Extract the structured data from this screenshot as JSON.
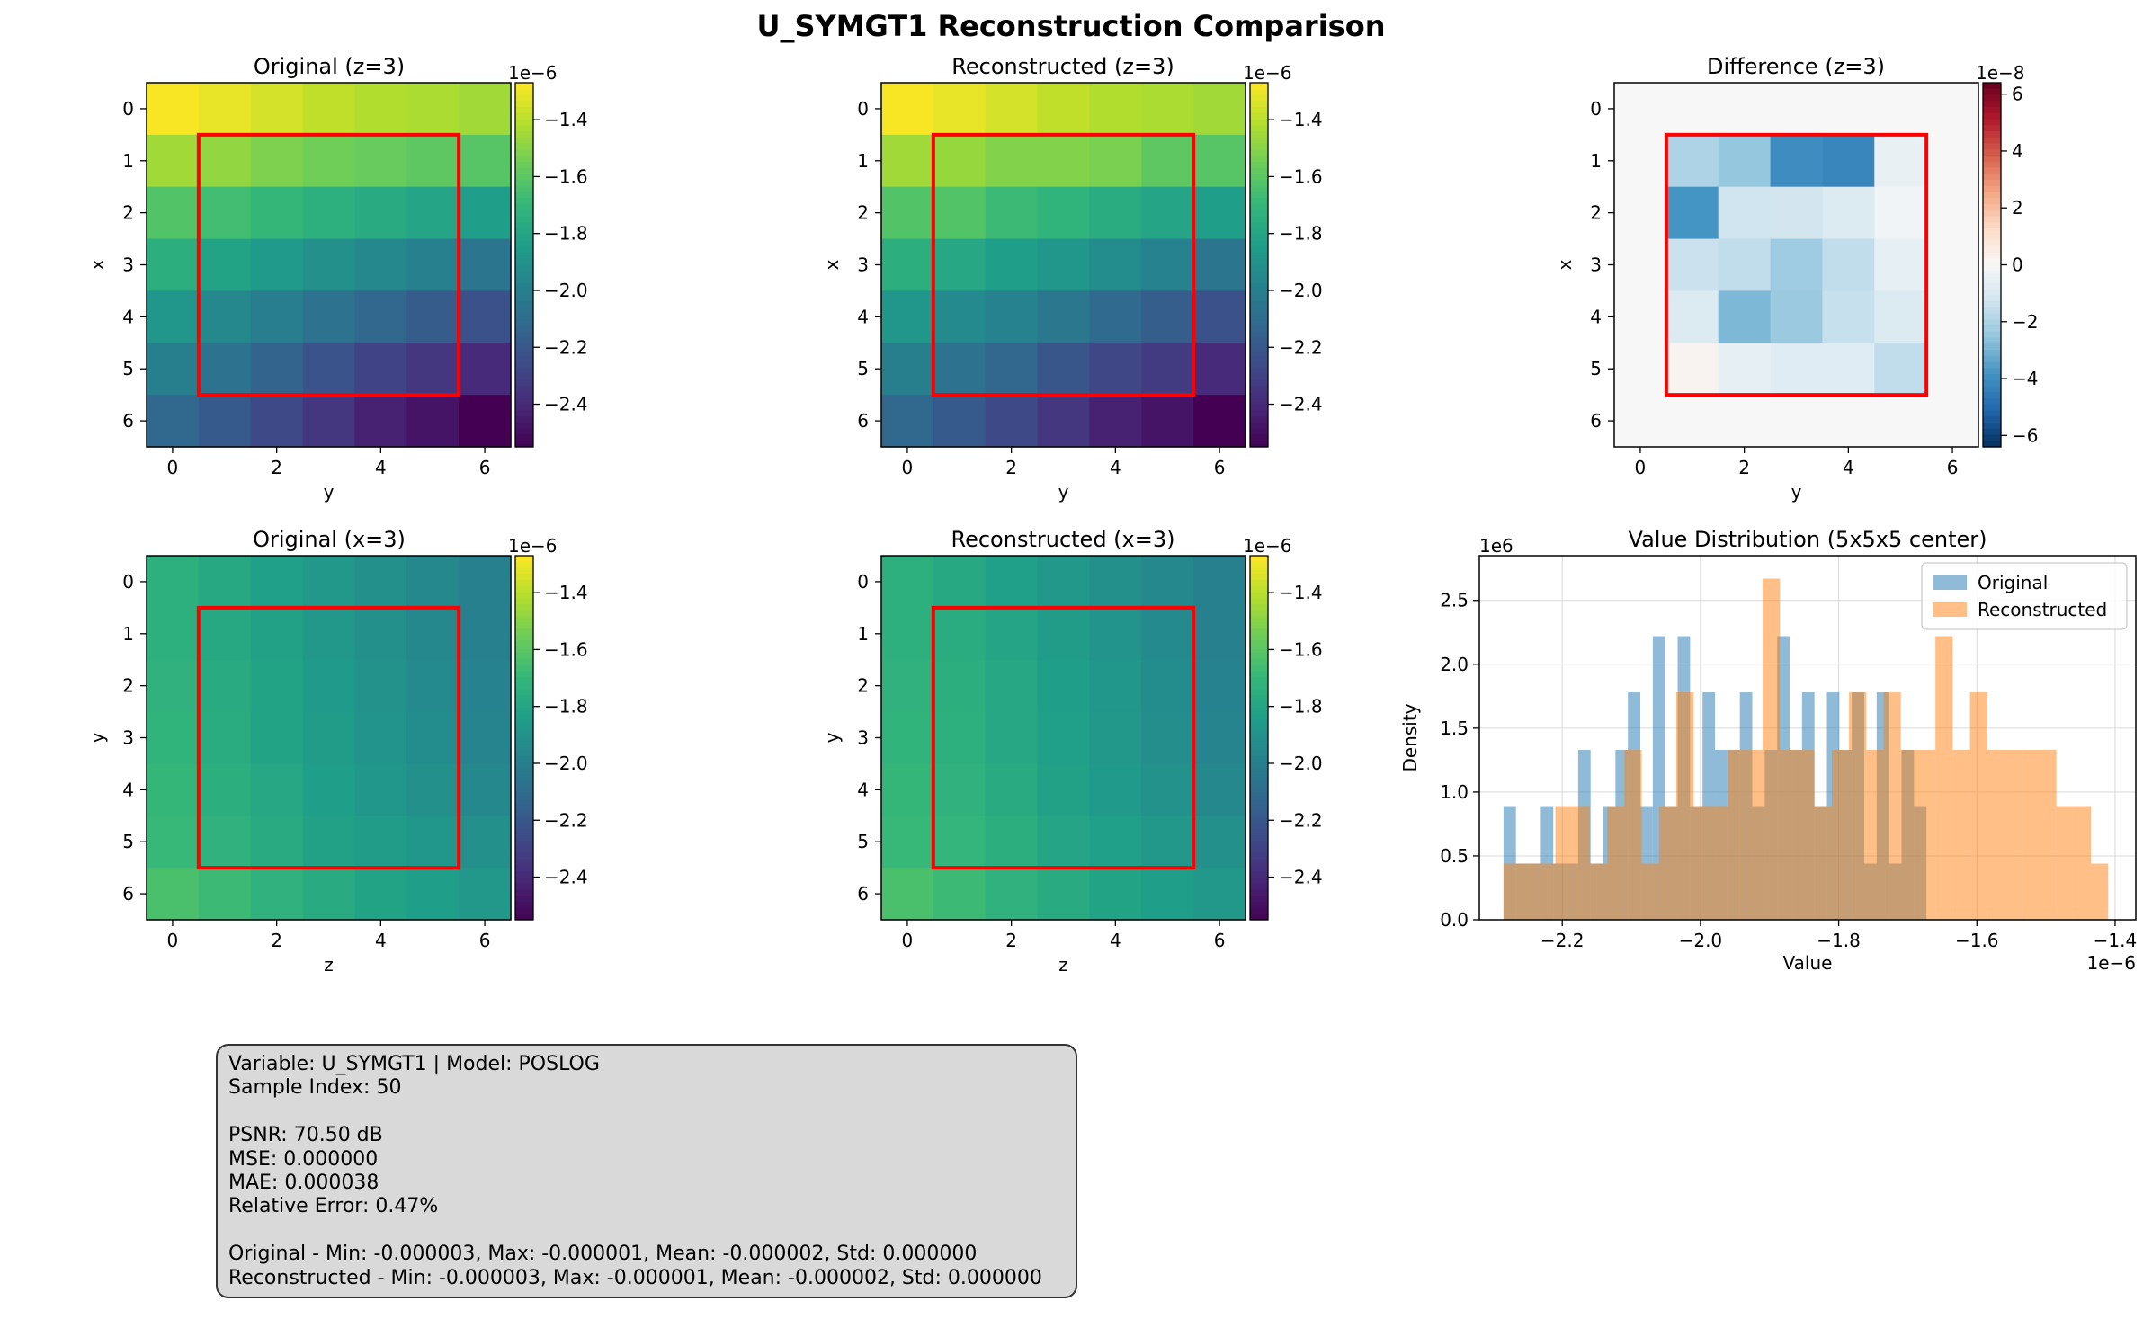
{
  "figure_title": "U_SYMGT1 Reconstruction Comparison",
  "colors": {
    "mask": "#ff0000",
    "original": "#1f77b4",
    "reconstructed": "#ff7f0e",
    "grid": "#d9d9d9",
    "stats_bg": "#d9d9d9"
  },
  "chart_data": [
    {
      "type": "heatmap",
      "title": "Original (z=3)",
      "xlabel": "y",
      "ylabel": "x",
      "cmap": "viridis",
      "x_ticks": [
        "0",
        "2",
        "4",
        "6"
      ],
      "y_ticks": [
        "0",
        "1",
        "2",
        "3",
        "4",
        "5",
        "6"
      ],
      "colorbar": {
        "vmin": -2.55,
        "vmax": -1.27,
        "ticks": [
          -1.4,
          -1.6,
          -1.8,
          -2.0,
          -2.2,
          -2.4
        ],
        "tick_labels": [
          "−1.4",
          "−1.6",
          "−1.8",
          "−2.0",
          "−2.2",
          "−2.4"
        ],
        "offset": "1e−6"
      },
      "mask": {
        "rows": [
          1,
          5
        ],
        "cols": [
          1,
          5
        ]
      },
      "values": [
        [
          -1.28,
          -1.31,
          -1.35,
          -1.39,
          -1.42,
          -1.43,
          -1.45
        ],
        [
          -1.45,
          -1.48,
          -1.52,
          -1.55,
          -1.57,
          -1.59,
          -1.61
        ],
        [
          -1.62,
          -1.66,
          -1.7,
          -1.74,
          -1.77,
          -1.8,
          -1.84
        ],
        [
          -1.75,
          -1.81,
          -1.86,
          -1.91,
          -1.95,
          -1.99,
          -2.05
        ],
        [
          -1.88,
          -1.95,
          -2.01,
          -2.07,
          -2.13,
          -2.18,
          -2.23
        ],
        [
          -2.0,
          -2.07,
          -2.14,
          -2.22,
          -2.29,
          -2.35,
          -2.4
        ],
        [
          -2.12,
          -2.19,
          -2.27,
          -2.35,
          -2.43,
          -2.48,
          -2.55
        ]
      ]
    },
    {
      "type": "heatmap",
      "title": "Reconstructed (z=3)",
      "xlabel": "y",
      "ylabel": "x",
      "cmap": "viridis",
      "x_ticks": [
        "0",
        "2",
        "4",
        "6"
      ],
      "y_ticks": [
        "0",
        "1",
        "2",
        "3",
        "4",
        "5",
        "6"
      ],
      "colorbar": {
        "vmin": -2.55,
        "vmax": -1.27,
        "ticks": [
          -1.4,
          -1.6,
          -1.8,
          -2.0,
          -2.2,
          -2.4
        ],
        "tick_labels": [
          "−1.4",
          "−1.6",
          "−1.8",
          "−2.0",
          "−2.2",
          "−2.4"
        ],
        "offset": "1e−6"
      },
      "mask": {
        "rows": [
          1,
          5
        ],
        "cols": [
          1,
          5
        ]
      },
      "values": [
        [
          -1.28,
          -1.31,
          -1.35,
          -1.39,
          -1.42,
          -1.43,
          -1.45
        ],
        [
          -1.45,
          -1.47,
          -1.51,
          -1.51,
          -1.53,
          -1.59,
          -1.61
        ],
        [
          -1.62,
          -1.62,
          -1.68,
          -1.72,
          -1.76,
          -1.8,
          -1.84
        ],
        [
          -1.75,
          -1.79,
          -1.84,
          -1.88,
          -1.93,
          -1.98,
          -2.05
        ],
        [
          -1.88,
          -1.94,
          -1.98,
          -2.04,
          -2.11,
          -2.17,
          -2.23
        ],
        [
          -2.0,
          -2.07,
          -2.13,
          -2.21,
          -2.28,
          -2.33,
          -2.4
        ],
        [
          -2.12,
          -2.19,
          -2.27,
          -2.35,
          -2.43,
          -2.48,
          -2.55
        ]
      ]
    },
    {
      "type": "heatmap",
      "title": "Difference (z=3)",
      "xlabel": "y",
      "ylabel": "x",
      "cmap": "RdBu_r",
      "x_ticks": [
        "0",
        "2",
        "4",
        "6"
      ],
      "y_ticks": [
        "0",
        "1",
        "2",
        "3",
        "4",
        "5",
        "6"
      ],
      "colorbar": {
        "vmin": -6.4,
        "vmax": 6.4,
        "ticks": [
          6,
          4,
          2,
          0,
          -2,
          -4,
          -6
        ],
        "tick_labels": [
          "6",
          "4",
          "2",
          "0",
          "−2",
          "−4",
          "−6"
        ],
        "offset": "1e−8"
      },
      "mask": {
        "rows": [
          1,
          5
        ],
        "cols": [
          1,
          5
        ]
      },
      "values": [
        [
          0,
          0,
          0,
          0,
          0,
          0,
          0
        ],
        [
          0,
          -2.0,
          -2.5,
          -4.0,
          -4.2,
          -0.5,
          0
        ],
        [
          0,
          -3.8,
          -1.3,
          -1.2,
          -0.9,
          -0.2,
          0
        ],
        [
          0,
          -1.4,
          -1.6,
          -2.3,
          -1.6,
          -0.6,
          0
        ],
        [
          0,
          -0.9,
          -2.9,
          -2.4,
          -1.5,
          -0.9,
          0
        ],
        [
          0,
          0.2,
          -0.6,
          -0.8,
          -0.8,
          -1.6,
          0
        ],
        [
          0,
          0,
          0,
          0,
          0,
          0,
          0
        ]
      ]
    },
    {
      "type": "heatmap",
      "title": "Original (x=3)",
      "xlabel": "z",
      "ylabel": "y",
      "cmap": "viridis",
      "x_ticks": [
        "0",
        "2",
        "4",
        "6"
      ],
      "y_ticks": [
        "0",
        "1",
        "2",
        "3",
        "4",
        "5",
        "6"
      ],
      "colorbar": {
        "vmin": -2.55,
        "vmax": -1.27,
        "ticks": [
          -1.4,
          -1.6,
          -1.8,
          -2.0,
          -2.2,
          -2.4
        ],
        "tick_labels": [
          "−1.4",
          "−1.6",
          "−1.8",
          "−2.0",
          "−2.2",
          "−2.4"
        ],
        "offset": "1e−6"
      },
      "mask": {
        "rows": [
          1,
          5
        ],
        "cols": [
          1,
          5
        ]
      },
      "values": [
        [
          -1.74,
          -1.78,
          -1.83,
          -1.87,
          -1.91,
          -1.95,
          -1.99
        ],
        [
          -1.74,
          -1.78,
          -1.82,
          -1.87,
          -1.91,
          -1.95,
          -1.99
        ],
        [
          -1.73,
          -1.77,
          -1.81,
          -1.86,
          -1.9,
          -1.94,
          -1.98
        ],
        [
          -1.72,
          -1.76,
          -1.81,
          -1.85,
          -1.89,
          -1.93,
          -1.97
        ],
        [
          -1.7,
          -1.75,
          -1.79,
          -1.84,
          -1.88,
          -1.91,
          -1.95
        ],
        [
          -1.69,
          -1.73,
          -1.77,
          -1.82,
          -1.85,
          -1.88,
          -1.91
        ],
        [
          -1.64,
          -1.68,
          -1.73,
          -1.77,
          -1.81,
          -1.84,
          -1.87
        ]
      ]
    },
    {
      "type": "heatmap",
      "title": "Reconstructed (x=3)",
      "xlabel": "z",
      "ylabel": "y",
      "cmap": "viridis",
      "x_ticks": [
        "0",
        "2",
        "4",
        "6"
      ],
      "y_ticks": [
        "0",
        "1",
        "2",
        "3",
        "4",
        "5",
        "6"
      ],
      "colorbar": {
        "vmin": -2.55,
        "vmax": -1.27,
        "ticks": [
          -1.4,
          -1.6,
          -1.8,
          -2.0,
          -2.2,
          -2.4
        ],
        "tick_labels": [
          "−1.4",
          "−1.6",
          "−1.8",
          "−2.0",
          "−2.2",
          "−2.4"
        ],
        "offset": "1e−6"
      },
      "mask": {
        "rows": [
          1,
          5
        ],
        "cols": [
          1,
          5
        ]
      },
      "values": [
        [
          -1.74,
          -1.78,
          -1.83,
          -1.87,
          -1.91,
          -1.95,
          -1.99
        ],
        [
          -1.74,
          -1.76,
          -1.8,
          -1.85,
          -1.89,
          -1.94,
          -1.99
        ],
        [
          -1.73,
          -1.75,
          -1.79,
          -1.84,
          -1.88,
          -1.93,
          -1.98
        ],
        [
          -1.72,
          -1.74,
          -1.79,
          -1.83,
          -1.87,
          -1.92,
          -1.97
        ],
        [
          -1.7,
          -1.73,
          -1.77,
          -1.82,
          -1.86,
          -1.9,
          -1.95
        ],
        [
          -1.69,
          -1.71,
          -1.75,
          -1.8,
          -1.83,
          -1.87,
          -1.91
        ],
        [
          -1.64,
          -1.68,
          -1.73,
          -1.77,
          -1.81,
          -1.84,
          -1.87
        ]
      ]
    },
    {
      "type": "bar",
      "subtype": "histogram",
      "title": "Value Distribution (5x5x5 center)",
      "xlabel": "Value",
      "ylabel": "Density",
      "x_offset": "1e−6",
      "y_offset": "1e6",
      "xlim": [
        -2.32,
        -1.37
      ],
      "ylim": [
        0,
        2.85
      ],
      "x_ticks": [
        -2.2,
        -2.0,
        -1.8,
        -1.6,
        -1.4
      ],
      "x_tick_labels": [
        "−2.2",
        "−2.0",
        "−1.8",
        "−1.6",
        "−1.4"
      ],
      "y_ticks": [
        0,
        0.5,
        1.0,
        1.5,
        2.0,
        2.5
      ],
      "y_tick_labels": [
        "0.0",
        "0.5",
        "1.0",
        "1.5",
        "2.0",
        "2.5"
      ],
      "grid": true,
      "legend": "top-right",
      "series": [
        {
          "name": "Original",
          "bin_start": -2.285,
          "bin_width": 0.018,
          "values": [
            0.89,
            0.44,
            0.44,
            0.89,
            0.44,
            0.44,
            1.33,
            0.44,
            0.89,
            1.33,
            1.78,
            0.89,
            2.22,
            0.89,
            2.22,
            0.89,
            1.78,
            1.33,
            1.33,
            1.78,
            0.89,
            1.33,
            2.22,
            1.33,
            1.78,
            0.89,
            1.78,
            1.33,
            1.78,
            0.44,
            1.78,
            0.44,
            1.33,
            0.89
          ],
          "alpha": 0.5
        },
        {
          "name": "Reconstructed",
          "bin_start": -2.285,
          "bin_width": 0.025,
          "values": [
            0.44,
            0.44,
            0.44,
            0.89,
            0.89,
            0.44,
            0.89,
            1.33,
            0.44,
            0.89,
            1.78,
            0.89,
            0.89,
            1.33,
            1.33,
            2.67,
            1.33,
            1.33,
            0.89,
            1.33,
            1.78,
            1.33,
            1.78,
            1.33,
            1.33,
            2.22,
            1.33,
            1.78,
            1.33,
            1.33,
            1.33,
            1.33,
            0.89,
            0.89,
            0.44
          ],
          "alpha": 0.5
        }
      ]
    }
  ],
  "stats": {
    "line1": "Variable: U_SYMGT1 | Model: POSLOG",
    "line2": "Sample Index: 50",
    "line3": "",
    "line4": "PSNR: 70.50 dB",
    "line5": "MSE: 0.000000",
    "line6": "MAE: 0.000038",
    "line7": "Relative Error: 0.47%",
    "line8": "",
    "line9": "Original - Min: -0.000003, Max: -0.000001, Mean: -0.000002, Std: 0.000000",
    "line10": "Reconstructed - Min: -0.000003, Max: -0.000001, Mean: -0.000002, Std: 0.000000"
  }
}
